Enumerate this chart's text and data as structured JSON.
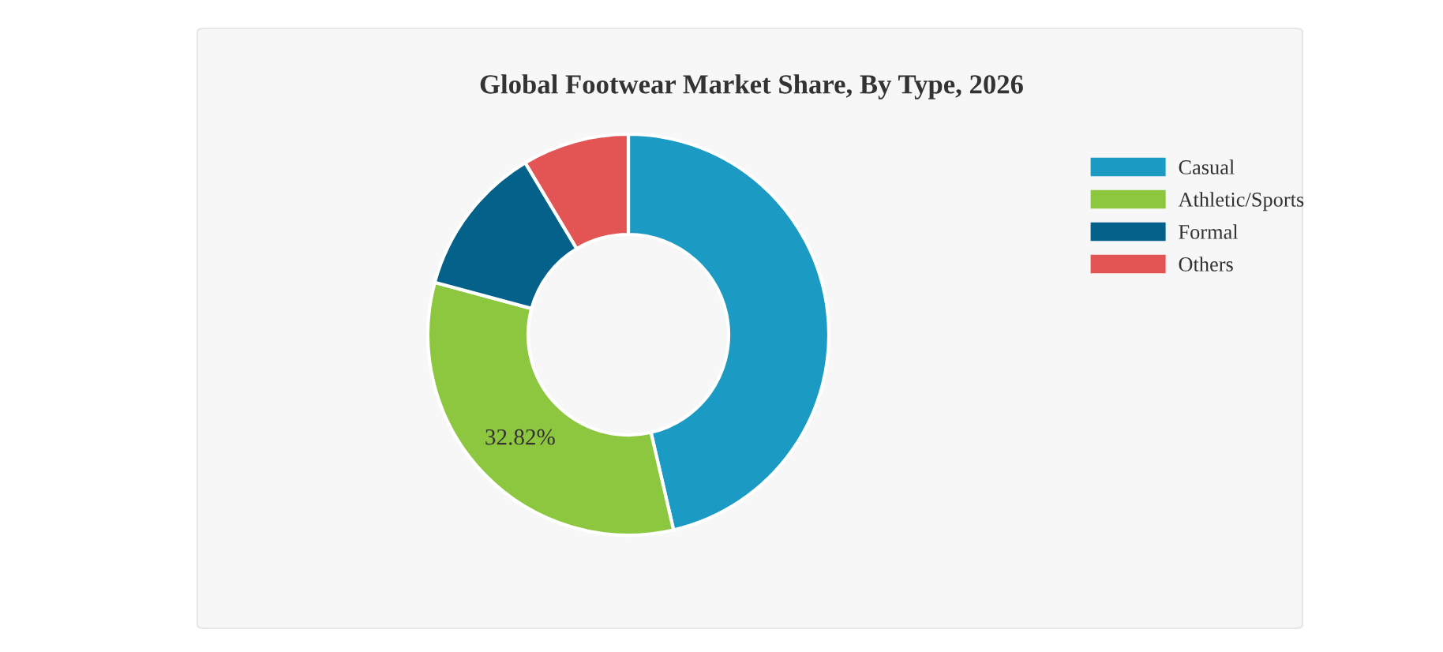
{
  "chart_data": {
    "type": "donut",
    "title": "Global Footwear Market Share, By Type, 2026",
    "categories": [
      "Casual",
      "Athletic/Sports",
      "Formal",
      "Others"
    ],
    "values": [
      46.38,
      32.82,
      12.2,
      8.6
    ],
    "colors": [
      "#1b9bc4",
      "#8dc63f",
      "#04628a",
      "#e35555"
    ],
    "value_labels": [
      null,
      "32.82%",
      null,
      null
    ],
    "legend": "top right"
  }
}
